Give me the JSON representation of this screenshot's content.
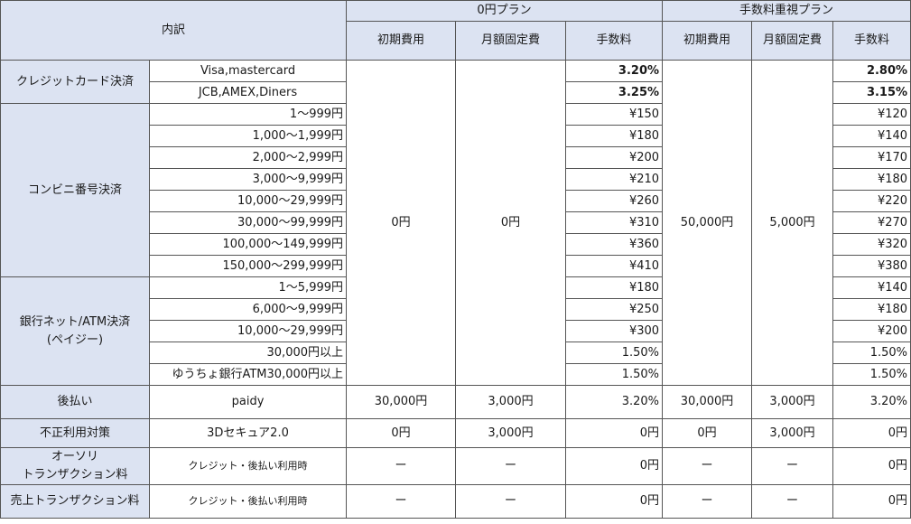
{
  "header": {
    "breakdown": "内訳",
    "plan_zero": "0円プラン",
    "plan_fee": "手数料重視プラン",
    "initial": "初期費用",
    "monthly": "月額固定費",
    "fee": "手数料"
  },
  "credit": {
    "label": "クレジットカード決済",
    "rows": [
      {
        "sub": "Visa,mastercard",
        "zero_fee": "3.20%",
        "plan_fee": "2.80%"
      },
      {
        "sub": "JCB,AMEX,Diners",
        "zero_fee": "3.25%",
        "plan_fee": "3.15%"
      }
    ]
  },
  "convenience": {
    "label": "コンビニ番号決済",
    "rows": [
      {
        "sub": "1～999円",
        "zero_fee": "¥150",
        "plan_fee": "¥120"
      },
      {
        "sub": "1,000～1,999円",
        "zero_fee": "¥180",
        "plan_fee": "¥140"
      },
      {
        "sub": "2,000～2,999円",
        "zero_fee": "¥200",
        "plan_fee": "¥170"
      },
      {
        "sub": "3,000～9,999円",
        "zero_fee": "¥210",
        "plan_fee": "¥180"
      },
      {
        "sub": "10,000～29,999円",
        "zero_fee": "¥260",
        "plan_fee": "¥220"
      },
      {
        "sub": "30,000～99,999円",
        "zero_fee": "¥310",
        "plan_fee": "¥270"
      },
      {
        "sub": "100,000～149,999円",
        "zero_fee": "¥360",
        "plan_fee": "¥320"
      },
      {
        "sub": "150,000～299,999円",
        "zero_fee": "¥410",
        "plan_fee": "¥380"
      }
    ]
  },
  "bank": {
    "label_line1": "銀行ネット/ATM決済",
    "label_line2": "(ペイジー)",
    "rows": [
      {
        "sub": "1～5,999円",
        "zero_fee": "¥180",
        "plan_fee": "¥140"
      },
      {
        "sub": "6,000～9,999円",
        "zero_fee": "¥250",
        "plan_fee": "¥180"
      },
      {
        "sub": "10,000～29,999円",
        "zero_fee": "¥300",
        "plan_fee": "¥200"
      },
      {
        "sub": "30,000円以上",
        "zero_fee": "1.50%",
        "plan_fee": "1.50%"
      },
      {
        "sub": "ゆうちょ銀行ATM30,000円以上",
        "zero_fee": "1.50%",
        "plan_fee": "1.50%"
      }
    ]
  },
  "shared": {
    "zero_initial": "0円",
    "zero_monthly": "0円",
    "fee_initial": "50,000円",
    "fee_monthly": "5,000円"
  },
  "postpay": {
    "label": "後払い",
    "sub": "paidy",
    "zero_initial": "30,000円",
    "zero_monthly": "3,000円",
    "zero_fee": "3.20%",
    "fee_initial": "30,000円",
    "fee_monthly": "3,000円",
    "fee_fee": "3.20%"
  },
  "fraud": {
    "label": "不正利用対策",
    "sub": "3Dセキュア2.0",
    "zero_initial": "0円",
    "zero_monthly": "3,000円",
    "zero_fee": "0円",
    "fee_initial": "0円",
    "fee_monthly": "3,000円",
    "fee_fee": "0円"
  },
  "auth": {
    "label_line1": "オーソリ",
    "label_line2": "トランザクション料",
    "sub": "クレジット・後払い利用時",
    "zero_initial": "ー",
    "zero_monthly": "ー",
    "zero_fee": "0円",
    "fee_initial": "ー",
    "fee_monthly": "ー",
    "fee_fee": "0円"
  },
  "sales": {
    "label": "売上トランザクション料",
    "sub": "クレジット・後払い利用時",
    "zero_initial": "ー",
    "zero_monthly": "ー",
    "zero_fee": "0円",
    "fee_initial": "ー",
    "fee_monthly": "ー",
    "fee_fee": "0円"
  }
}
